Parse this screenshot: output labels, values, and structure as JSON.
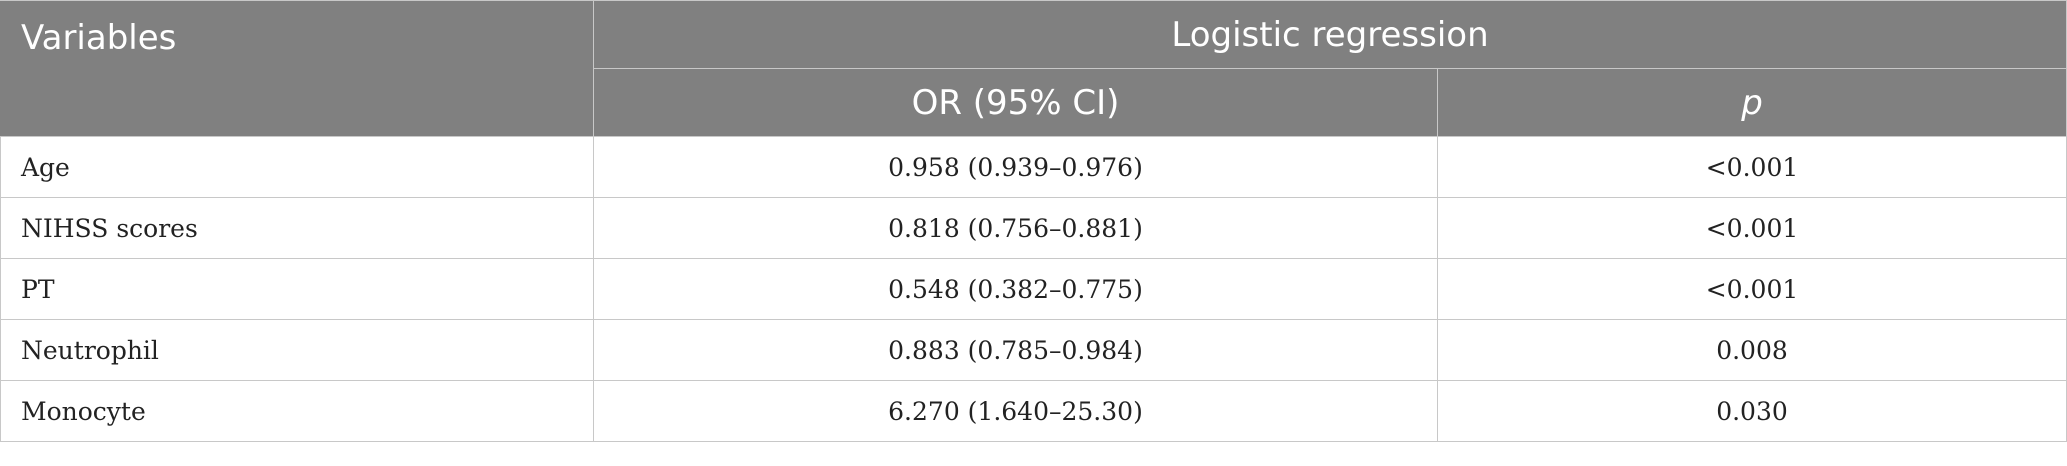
{
  "table": {
    "headers": {
      "variables": "Variables",
      "group": "Logistic regression",
      "or_ci": "OR (95% CI)",
      "p": "p"
    },
    "rows": [
      {
        "variable": "Age",
        "or_ci": "0.958 (0.939–0.976)",
        "p": "<0.001"
      },
      {
        "variable": "NIHSS scores",
        "or_ci": "0.818 (0.756–0.881)",
        "p": "<0.001"
      },
      {
        "variable": "PT",
        "or_ci": "0.548 (0.382–0.775)",
        "p": "<0.001"
      },
      {
        "variable": "Neutrophil",
        "or_ci": "0.883 (0.785–0.984)",
        "p": "0.008"
      },
      {
        "variable": "Monocyte",
        "or_ci": "6.270 (1.640–25.30)",
        "p": "0.030"
      }
    ],
    "colors": {
      "header_bg": "#808080",
      "header_text": "#ffffff",
      "grid": "#c8c8c8"
    }
  }
}
